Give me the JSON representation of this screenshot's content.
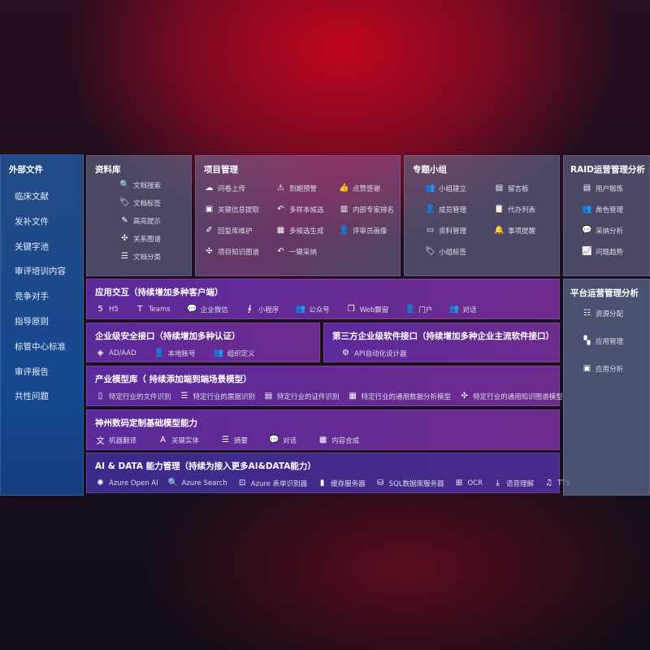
{
  "sidebar": {
    "title": "外部文件",
    "items": [
      "临床文献",
      "发补文件",
      "关键字池",
      "审评培训内容",
      "竞争对手",
      "指导原则",
      "标管中心标准",
      "审评报告",
      "共性问题"
    ]
  },
  "library": {
    "title": "资料库",
    "items": [
      {
        "icon": "document-search-icon",
        "g": "🔍",
        "label": "文档搜索"
      },
      {
        "icon": "tag-icon",
        "g": "🏷",
        "label": "文档标签"
      },
      {
        "icon": "pen-icon",
        "g": "✎",
        "label": "高亮提示"
      },
      {
        "icon": "graph-icon",
        "g": "✣",
        "label": "关系图谱"
      },
      {
        "icon": "document-list-icon",
        "g": "☰",
        "label": "文档分类"
      }
    ]
  },
  "project": {
    "title": "项目管理",
    "items": [
      {
        "icon": "cloud-upload-icon",
        "g": "☁",
        "label": "问卷上传"
      },
      {
        "icon": "alarm-icon",
        "g": "⚠",
        "label": "到期预警"
      },
      {
        "icon": "thumbs-up-icon",
        "g": "👍",
        "label": "点赞感谢"
      },
      {
        "icon": "window-icon",
        "g": "▣",
        "label": "关键信息提取"
      },
      {
        "icon": "reply-icon",
        "g": "↶",
        "label": "多样本候选"
      },
      {
        "icon": "ranking-icon",
        "g": "▥",
        "label": "内部专家排名"
      },
      {
        "icon": "pencil-icon",
        "g": "✐",
        "label": "回复库维护"
      },
      {
        "icon": "puzzle-icon",
        "g": "▦",
        "label": "多候选生成"
      },
      {
        "icon": "user-icon",
        "g": "👤",
        "label": "评审员画像"
      },
      {
        "icon": "knowledge-graph-icon",
        "g": "✣",
        "label": "项目知识图谱"
      },
      {
        "icon": "reply-icon",
        "g": "↶",
        "label": "一键采纳"
      }
    ]
  },
  "group": {
    "title": "专题小组",
    "items": [
      {
        "icon": "group-icon",
        "g": "👥",
        "label": "小组建立"
      },
      {
        "icon": "bbs-icon",
        "g": "▤",
        "label": "留言板"
      },
      {
        "icon": "member-icon",
        "g": "👤",
        "label": "成员管理"
      },
      {
        "icon": "clipboard-icon",
        "g": "📋",
        "label": "代办列表"
      },
      {
        "icon": "folder-icon",
        "g": "▭",
        "label": "资料管理"
      },
      {
        "icon": "bell-icon",
        "g": "🔔",
        "label": "事项提醒"
      },
      {
        "icon": "tag-icon",
        "g": "🏷",
        "label": "小组标签"
      }
    ]
  },
  "raid": {
    "title": "RAID运营管理分析",
    "items": [
      {
        "icon": "id-card-icon",
        "g": "▤",
        "label": "用户锻炼"
      },
      {
        "icon": "users-icon",
        "g": "👥",
        "label": "角色管理"
      },
      {
        "icon": "qa-icon",
        "g": "💬",
        "label": "采纳分析"
      },
      {
        "icon": "trend-icon",
        "g": "📈",
        "label": "问题趋势"
      }
    ]
  },
  "app": {
    "title": "应用交互（持续增加多种客户端）",
    "items": [
      {
        "icon": "html5-icon",
        "g": "5",
        "label": "H5"
      },
      {
        "icon": "teams-icon",
        "g": "T",
        "label": "Teams"
      },
      {
        "icon": "wechat-work-icon",
        "g": "💬",
        "label": "企业微信"
      },
      {
        "icon": "mini-program-icon",
        "g": "∮",
        "label": "小程序"
      },
      {
        "icon": "official-account-icon",
        "g": "👥",
        "label": "公众号"
      },
      {
        "icon": "web-window-icon",
        "g": "❐",
        "label": "Web飘窗"
      },
      {
        "icon": "portal-icon",
        "g": "👤",
        "label": "门户"
      },
      {
        "icon": "chat-icon",
        "g": "👥",
        "label": "对话"
      }
    ]
  },
  "security": {
    "title": "企业级安全接口（持续增加多种认证）",
    "items": [
      {
        "icon": "aad-icon",
        "g": "◈",
        "label": "AD/AAD"
      },
      {
        "icon": "local-account-icon",
        "g": "👤",
        "label": "本地账号"
      },
      {
        "icon": "organization-icon",
        "g": "👥",
        "label": "组织定义"
      }
    ]
  },
  "thirdparty": {
    "title": "第三方企业级软件接口（持续增加多种企业主流软件接口）",
    "items": [
      {
        "icon": "api-gear-icon",
        "g": "⚙",
        "label": "API自动化设计器"
      }
    ]
  },
  "industry": {
    "title": "产业模型库（ 持续添加端到端场景模型）",
    "items": [
      {
        "icon": "file-icon",
        "g": "▯",
        "label": "特定行业的文件识别"
      },
      {
        "icon": "receipt-icon",
        "g": "☰",
        "label": "特定行业的票据识别"
      },
      {
        "icon": "id-card-icon",
        "g": "▤",
        "label": "特定行业的证件识别"
      },
      {
        "icon": "chart-icon",
        "g": "▦",
        "label": "特定行业的通用数据分析模型"
      },
      {
        "icon": "knowledge-graph-icon",
        "g": "✣",
        "label": "特定行业的通用知识图谱模型"
      }
    ]
  },
  "base": {
    "title": "神州数码定制基础模型能力",
    "items": [
      {
        "icon": "translate-icon",
        "g": "文",
        "label": "机器翻译"
      },
      {
        "icon": "entity-icon",
        "g": "A",
        "label": "关键实体"
      },
      {
        "icon": "summary-icon",
        "g": "☰",
        "label": "摘要"
      },
      {
        "icon": "chat-bubble-icon",
        "g": "💬",
        "label": "对话"
      },
      {
        "icon": "puzzle-icon",
        "g": "▦",
        "label": "内容合成"
      }
    ]
  },
  "ai": {
    "title": "AI & DATA 能力管理（持续为接入更多AI&DATA能力）",
    "items": [
      {
        "icon": "openai-icon",
        "g": "✺",
        "label": "Azure Open AI"
      },
      {
        "icon": "search-doc-icon",
        "g": "🔍",
        "label": "Azure Search"
      },
      {
        "icon": "form-recognizer-icon",
        "g": "⊡",
        "label": "Azure 表单识别器"
      },
      {
        "icon": "cache-server-icon",
        "g": "▮",
        "label": "缓存服务器"
      },
      {
        "icon": "database-icon",
        "g": "⛁",
        "label": "SQL数据库服务器"
      },
      {
        "icon": "ocr-icon",
        "g": "⊞",
        "label": "OCR"
      },
      {
        "icon": "speech-icon",
        "g": "⤓",
        "label": "语音理解"
      },
      {
        "icon": "tts-icon",
        "g": "♫",
        "label": "TTS"
      }
    ]
  },
  "platform": {
    "title": "平台运营管理分析",
    "items": [
      {
        "icon": "checklist-icon",
        "g": "☷",
        "label": "资源分配"
      },
      {
        "icon": "apps-icon",
        "g": "▚",
        "label": "应用管理"
      },
      {
        "icon": "app-analysis-icon",
        "g": "▣",
        "label": "应用分析"
      }
    ]
  }
}
